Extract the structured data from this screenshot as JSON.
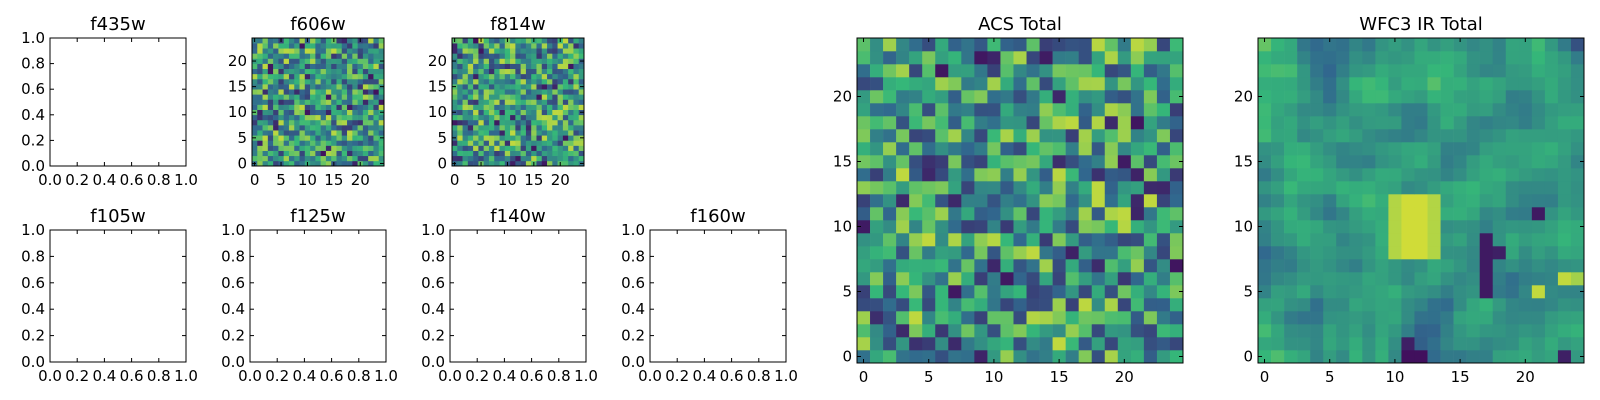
{
  "colormap": [
    "#440154",
    "#31688e",
    "#35b779",
    "#fde725"
  ],
  "chart_data": [
    {
      "id": "f435w",
      "type": "heatmap",
      "title": "f435w",
      "empty": true,
      "xlim": [
        0,
        1
      ],
      "ylim": [
        0,
        1
      ],
      "xticks": [
        "0.0",
        "0.2",
        "0.4",
        "0.6",
        "0.8",
        "1.0"
      ],
      "yticks": [
        "0.0",
        "0.2",
        "0.4",
        "0.6",
        "0.8",
        "1.0"
      ]
    },
    {
      "id": "f606w",
      "type": "heatmap",
      "title": "f606w",
      "empty": false,
      "grid_size": 25,
      "seed": 3,
      "xlim": [
        -0.5,
        24.5
      ],
      "ylim": [
        -0.5,
        24.5
      ],
      "xticks": [
        "0",
        "5",
        "10",
        "15",
        "20"
      ],
      "yticks": [
        "0",
        "5",
        "10",
        "15",
        "20"
      ]
    },
    {
      "id": "f814w",
      "type": "heatmap",
      "title": "f814w",
      "empty": false,
      "grid_size": 25,
      "seed": 11,
      "xlim": [
        -0.5,
        24.5
      ],
      "ylim": [
        -0.5,
        24.5
      ],
      "xticks": [
        "0",
        "5",
        "10",
        "15",
        "20"
      ],
      "yticks": [
        "0",
        "5",
        "10",
        "15",
        "20"
      ]
    },
    {
      "id": "f105w",
      "type": "heatmap",
      "title": "f105w",
      "empty": true,
      "xlim": [
        0,
        1
      ],
      "ylim": [
        0,
        1
      ],
      "xticks": [
        "0.0",
        "0.2",
        "0.4",
        "0.6",
        "0.8",
        "1.0"
      ],
      "yticks": [
        "0.0",
        "0.2",
        "0.4",
        "0.6",
        "0.8",
        "1.0"
      ]
    },
    {
      "id": "f125w",
      "type": "heatmap",
      "title": "f125w",
      "empty": true,
      "xlim": [
        0,
        1
      ],
      "ylim": [
        0,
        1
      ],
      "xticks": [
        "0.0",
        "0.2",
        "0.4",
        "0.6",
        "0.8",
        "1.0"
      ],
      "yticks": [
        "0.0",
        "0.2",
        "0.4",
        "0.6",
        "0.8",
        "1.0"
      ]
    },
    {
      "id": "f140w",
      "type": "heatmap",
      "title": "f140w",
      "empty": true,
      "xlim": [
        0,
        1
      ],
      "ylim": [
        0,
        1
      ],
      "xticks": [
        "0.0",
        "0.2",
        "0.4",
        "0.6",
        "0.8",
        "1.0"
      ],
      "yticks": [
        "0.0",
        "0.2",
        "0.4",
        "0.6",
        "0.8",
        "1.0"
      ]
    },
    {
      "id": "f160w",
      "type": "heatmap",
      "title": "f160w",
      "empty": true,
      "xlim": [
        0,
        1
      ],
      "ylim": [
        0,
        1
      ],
      "xticks": [
        "0.0",
        "0.2",
        "0.4",
        "0.6",
        "0.8",
        "1.0"
      ],
      "yticks": [
        "0.0",
        "0.2",
        "0.4",
        "0.6",
        "0.8",
        "1.0"
      ]
    },
    {
      "id": "acs",
      "type": "heatmap",
      "title": "ACS Total",
      "empty": false,
      "grid_size": 25,
      "seed": 23,
      "xlim": [
        -0.5,
        24.5
      ],
      "ylim": [
        -0.5,
        24.5
      ],
      "xticks": [
        "0",
        "5",
        "10",
        "15",
        "20"
      ],
      "yticks": [
        "0",
        "5",
        "10",
        "15",
        "20"
      ]
    },
    {
      "id": "wfc3",
      "type": "heatmap",
      "title": "WFC3 IR Total",
      "empty": false,
      "grid_size": 25,
      "seed": 41,
      "smooth": true,
      "xlim": [
        -0.5,
        24.5
      ],
      "ylim": [
        -0.5,
        24.5
      ],
      "xticks": [
        "0",
        "5",
        "10",
        "15",
        "20"
      ],
      "yticks": [
        "0",
        "5",
        "10",
        "15",
        "20"
      ]
    }
  ]
}
